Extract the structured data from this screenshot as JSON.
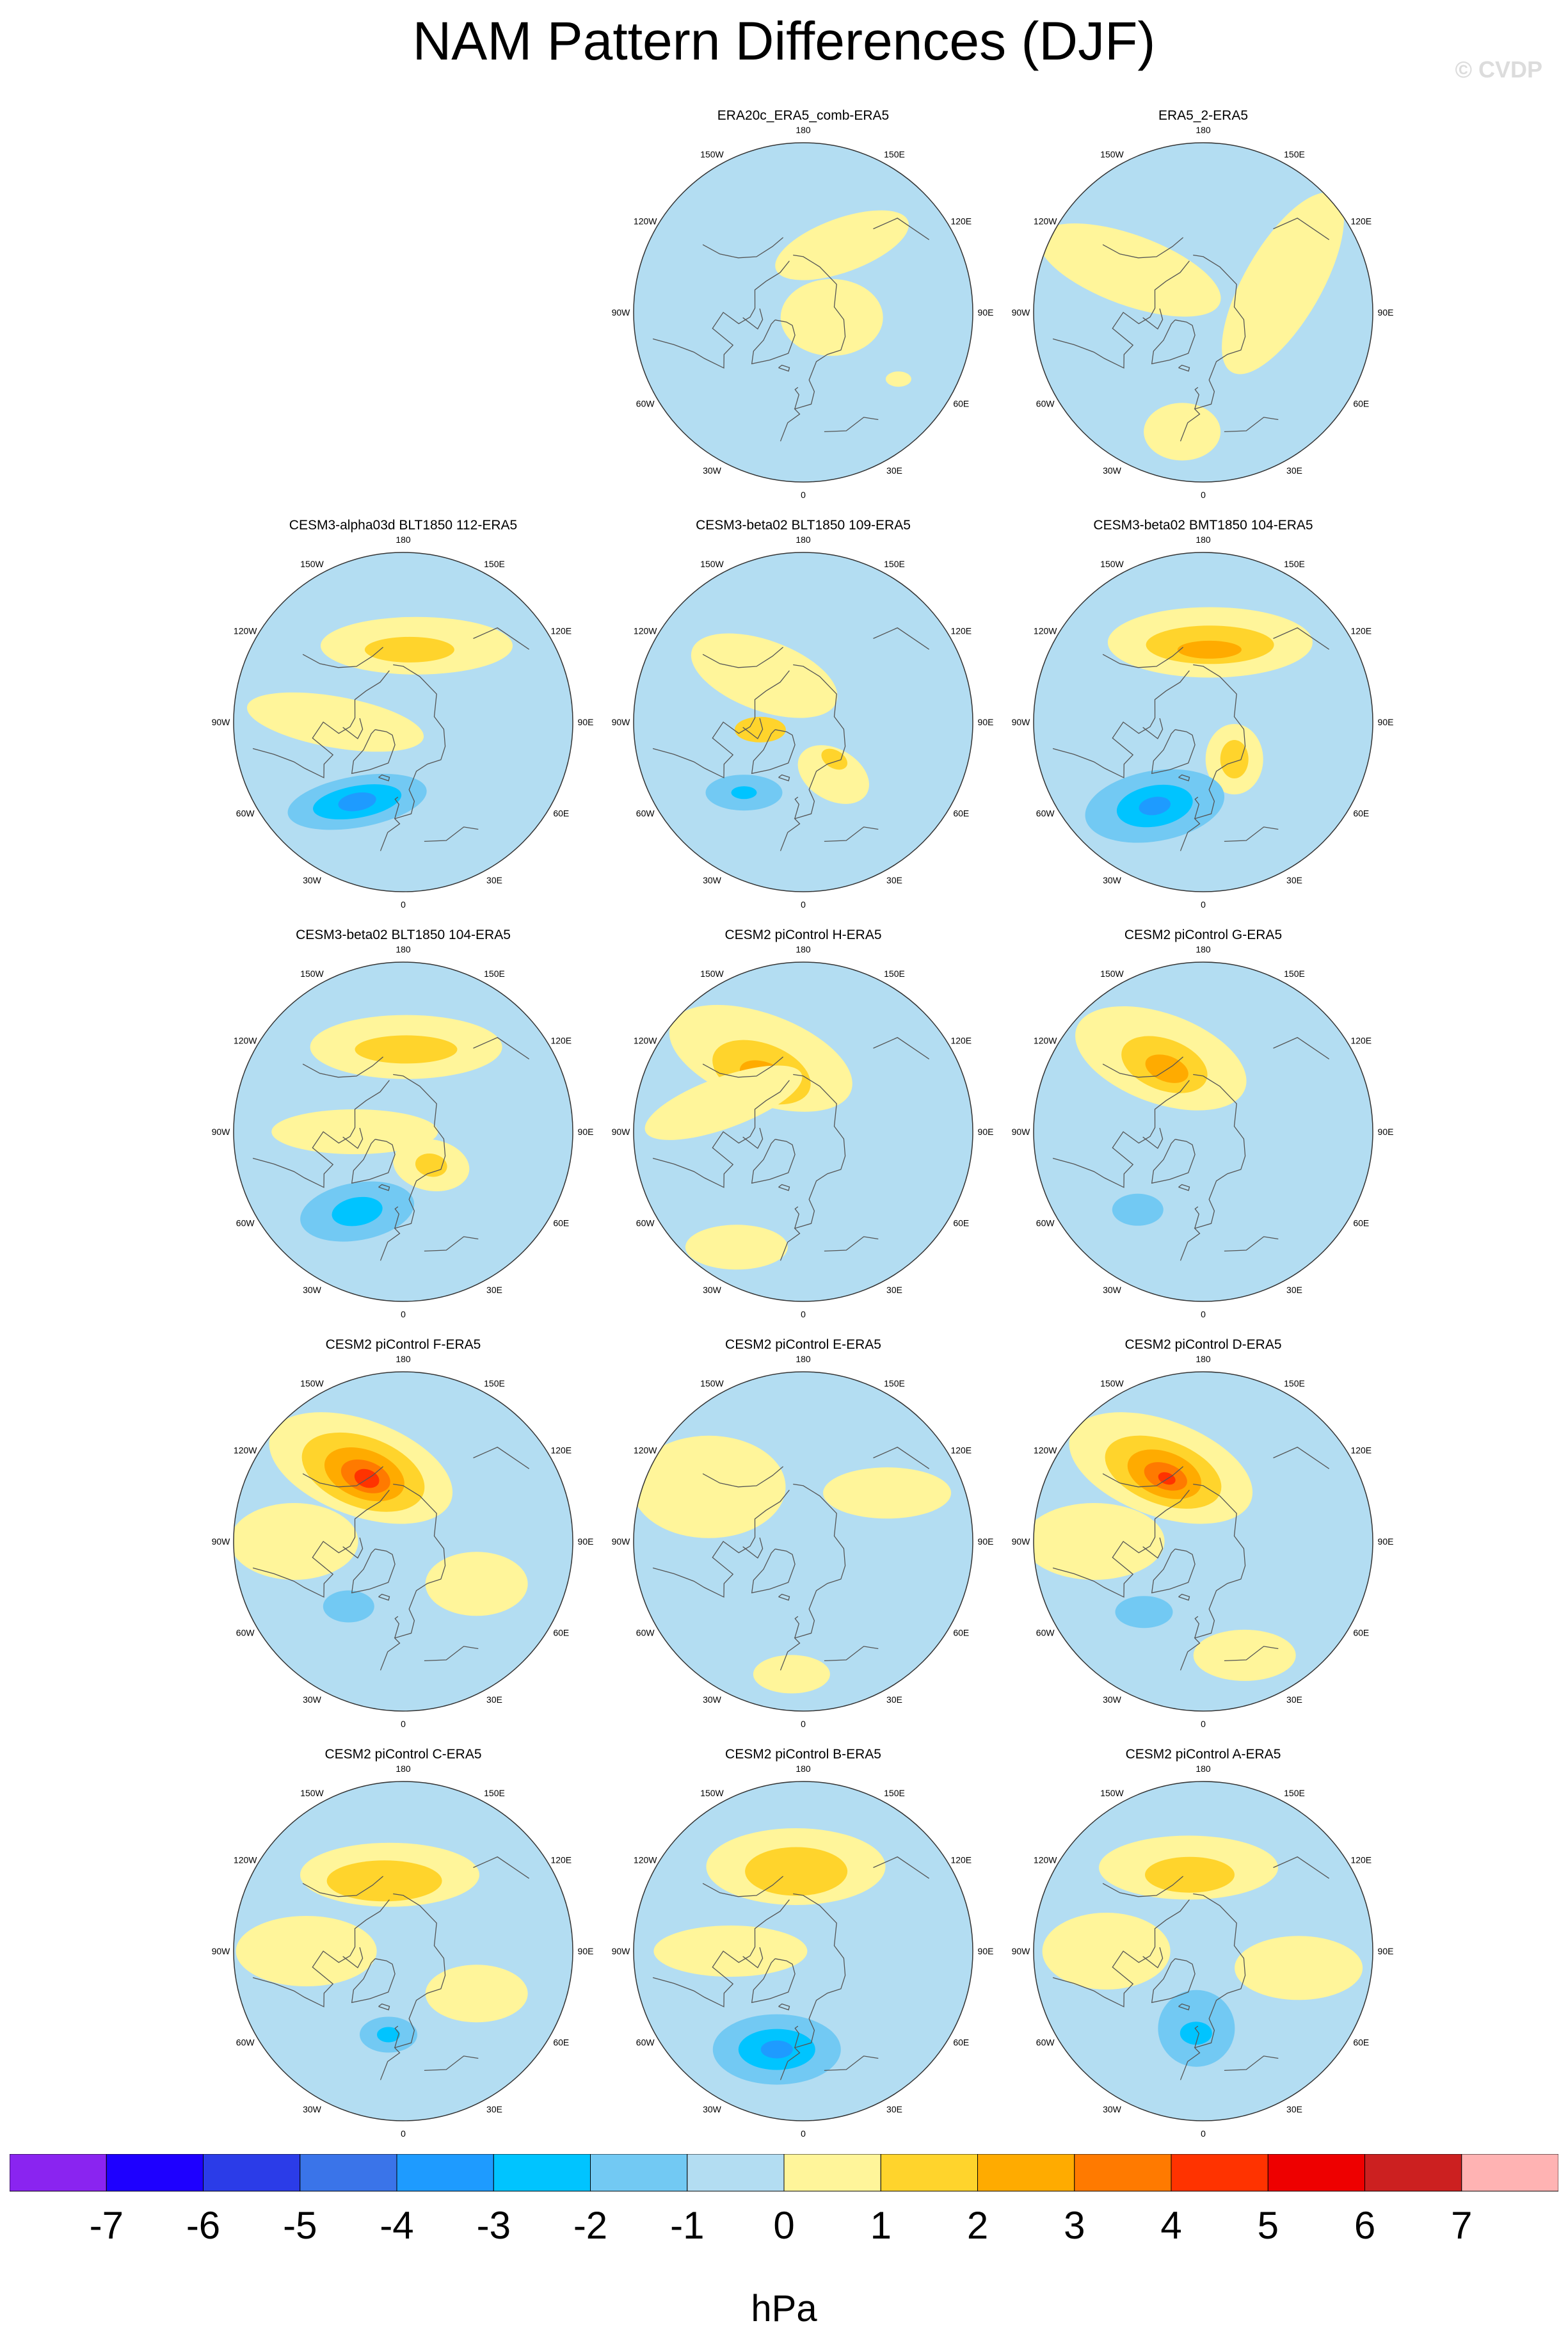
{
  "figure": {
    "title": "NAM Pattern Differences (DJF)",
    "watermark": "© CVDP",
    "units": "hPa"
  },
  "map_labels": [
    "180",
    "150E",
    "120E",
    "90E",
    "60E",
    "30E",
    "0",
    "30W",
    "60W",
    "90W",
    "120W",
    "150W"
  ],
  "palette": {
    "ocean_neutral_negative": "#b3ddf2",
    "land_line": "#555555",
    "circle_line": "#333333"
  },
  "chart_data": {
    "type": "heatmap",
    "title": "NAM Pattern Differences (DJF)",
    "projection": "north polar stereographic",
    "colorbar": {
      "label": "hPa",
      "ticks": [
        "-7",
        "-6",
        "-5",
        "-4",
        "-3",
        "-2",
        "-1",
        "0",
        "1",
        "2",
        "3",
        "4",
        "5",
        "6",
        "7"
      ],
      "colors": [
        "#8a24f0",
        "#1e00ff",
        "#2b3ce8",
        "#3a74e9",
        "#1e9bff",
        "#00c4ff",
        "#72c9f3",
        "#b3ddf2",
        "#fff59a",
        "#ffd42c",
        "#ffab00",
        "#ff7a00",
        "#ff3300",
        "#ee0000",
        "#cc2020",
        "#ffb3b3"
      ]
    },
    "panels": [
      {
        "title": "ERA20c_ERA5_comb-ERA5",
        "row": 0,
        "col": 1,
        "blobs": [
          {
            "lon": 150,
            "lat": 58,
            "rx": 110,
            "ry": 42,
            "rot": -20,
            "level": 8
          },
          {
            "lon": 80,
            "lat": 78,
            "rx": 80,
            "ry": 60,
            "rot": 0,
            "level": 8
          },
          {
            "lon": 55,
            "lat": 42,
            "rx": 20,
            "ry": 12,
            "rot": 0,
            "level": 8
          }
        ]
      },
      {
        "title": "ERA5_2-ERA5",
        "row": 0,
        "col": 2,
        "blobs": [
          {
            "lon": -120,
            "lat": 55,
            "rx": 150,
            "ry": 55,
            "rot": 20,
            "level": 8
          },
          {
            "lon": 110,
            "lat": 55,
            "rx": 160,
            "ry": 60,
            "rot": -60,
            "level": 8
          },
          {
            "lon": -10,
            "lat": 40,
            "rx": 60,
            "ry": 45,
            "rot": 0,
            "level": 8
          }
        ]
      },
      {
        "title": "CESM3-alpha03d BLT1850 112-ERA5",
        "row": 1,
        "col": 0,
        "blobs": [
          {
            "lon": 170,
            "lat": 58,
            "rx": 150,
            "ry": 45,
            "rot": 0,
            "level": 8
          },
          {
            "lon": 175,
            "lat": 60,
            "rx": 70,
            "ry": 20,
            "rot": 0,
            "level": 9
          },
          {
            "lon": -90,
            "lat": 62,
            "rx": 140,
            "ry": 40,
            "rot": 10,
            "level": 8
          },
          {
            "lon": -30,
            "lat": 52,
            "rx": 110,
            "ry": 40,
            "rot": -10,
            "level": 6
          },
          {
            "lon": -30,
            "lat": 52,
            "rx": 70,
            "ry": 25,
            "rot": -10,
            "level": 5
          },
          {
            "lon": -30,
            "lat": 52,
            "rx": 30,
            "ry": 14,
            "rot": -10,
            "level": 4
          }
        ]
      },
      {
        "title": "CESM3-beta02 BLT1850 109-ERA5",
        "row": 1,
        "col": 1,
        "blobs": [
          {
            "lon": -140,
            "lat": 65,
            "rx": 120,
            "ry": 55,
            "rot": 20,
            "level": 8
          },
          {
            "lon": -80,
            "lat": 72,
            "rx": 40,
            "ry": 20,
            "rot": 0,
            "level": 9
          },
          {
            "lon": 30,
            "lat": 65,
            "rx": 60,
            "ry": 40,
            "rot": 30,
            "level": 8
          },
          {
            "lon": 40,
            "lat": 70,
            "rx": 22,
            "ry": 14,
            "rot": 30,
            "level": 9
          },
          {
            "lon": -40,
            "lat": 52,
            "rx": 60,
            "ry": 28,
            "rot": 0,
            "level": 6
          },
          {
            "lon": -40,
            "lat": 52,
            "rx": 20,
            "ry": 10,
            "rot": 0,
            "level": 5
          }
        ]
      },
      {
        "title": "CESM3-beta02 BMT1850 104-ERA5",
        "row": 1,
        "col": 2,
        "blobs": [
          {
            "lon": 175,
            "lat": 57,
            "rx": 160,
            "ry": 55,
            "rot": 0,
            "level": 8
          },
          {
            "lon": 175,
            "lat": 58,
            "rx": 100,
            "ry": 30,
            "rot": 0,
            "level": 9
          },
          {
            "lon": 175,
            "lat": 60,
            "rx": 50,
            "ry": 14,
            "rot": 0,
            "level": 10
          },
          {
            "lon": 40,
            "lat": 70,
            "rx": 45,
            "ry": 55,
            "rot": 0,
            "level": 8
          },
          {
            "lon": 40,
            "lat": 70,
            "rx": 22,
            "ry": 30,
            "rot": 0,
            "level": 9
          },
          {
            "lon": -30,
            "lat": 50,
            "rx": 110,
            "ry": 55,
            "rot": -10,
            "level": 6
          },
          {
            "lon": -30,
            "lat": 50,
            "rx": 60,
            "ry": 32,
            "rot": -10,
            "level": 5
          },
          {
            "lon": -30,
            "lat": 50,
            "rx": 25,
            "ry": 14,
            "rot": -10,
            "level": 4
          }
        ]
      },
      {
        "title": "CESM3-beta02 BLT1850 104-ERA5",
        "row": 2,
        "col": 0,
        "blobs": [
          {
            "lon": 178,
            "lat": 55,
            "rx": 150,
            "ry": 50,
            "rot": 0,
            "level": 8
          },
          {
            "lon": 178,
            "lat": 56,
            "rx": 80,
            "ry": 22,
            "rot": 0,
            "level": 9
          },
          {
            "lon": 40,
            "lat": 72,
            "rx": 60,
            "ry": 40,
            "rot": 10,
            "level": 8
          },
          {
            "lon": 40,
            "lat": 72,
            "rx": 25,
            "ry": 18,
            "rot": 10,
            "level": 9
          },
          {
            "lon": -90,
            "lat": 70,
            "rx": 130,
            "ry": 35,
            "rot": 0,
            "level": 8
          },
          {
            "lon": -30,
            "lat": 52,
            "rx": 90,
            "ry": 45,
            "rot": -10,
            "level": 6
          },
          {
            "lon": -30,
            "lat": 52,
            "rx": 40,
            "ry": 22,
            "rot": -10,
            "level": 5
          }
        ]
      },
      {
        "title": "CESM2 piControl H-ERA5",
        "row": 2,
        "col": 1,
        "blobs": [
          {
            "lon": -150,
            "lat": 55,
            "rx": 150,
            "ry": 70,
            "rot": 20,
            "level": 8
          },
          {
            "lon": -145,
            "lat": 60,
            "rx": 80,
            "ry": 45,
            "rot": 20,
            "level": 9
          },
          {
            "lon": -145,
            "lat": 62,
            "rx": 40,
            "ry": 22,
            "rot": 20,
            "level": 10
          },
          {
            "lon": -110,
            "lat": 55,
            "rx": 130,
            "ry": 40,
            "rot": -20,
            "level": 8
          },
          {
            "lon": -30,
            "lat": 35,
            "rx": 80,
            "ry": 35,
            "rot": 0,
            "level": 8
          }
        ]
      },
      {
        "title": "CESM2 piControl G-ERA5",
        "row": 2,
        "col": 2,
        "blobs": [
          {
            "lon": -150,
            "lat": 55,
            "rx": 140,
            "ry": 70,
            "rot": 20,
            "level": 8
          },
          {
            "lon": -150,
            "lat": 58,
            "rx": 70,
            "ry": 40,
            "rot": 20,
            "level": 9
          },
          {
            "lon": -150,
            "lat": 60,
            "rx": 35,
            "ry": 20,
            "rot": 20,
            "level": 10
          },
          {
            "lon": -40,
            "lat": 48,
            "rx": 40,
            "ry": 25,
            "rot": 0,
            "level": 6
          }
        ]
      },
      {
        "title": "CESM2 piControl F-ERA5",
        "row": 3,
        "col": 0,
        "blobs": [
          {
            "lon": -150,
            "lat": 55,
            "rx": 150,
            "ry": 75,
            "rot": 20,
            "level": 8
          },
          {
            "lon": -150,
            "lat": 57,
            "rx": 100,
            "ry": 55,
            "rot": 20,
            "level": 9
          },
          {
            "lon": -150,
            "lat": 58,
            "rx": 65,
            "ry": 38,
            "rot": 20,
            "level": 10
          },
          {
            "lon": -150,
            "lat": 59,
            "rx": 40,
            "ry": 24,
            "rot": 20,
            "level": 11
          },
          {
            "lon": -150,
            "lat": 60,
            "rx": 20,
            "ry": 14,
            "rot": 20,
            "level": 12
          },
          {
            "lon": -90,
            "lat": 45,
            "rx": 100,
            "ry": 60,
            "rot": 0,
            "level": 8
          },
          {
            "lon": 60,
            "lat": 55,
            "rx": 80,
            "ry": 50,
            "rot": 0,
            "level": 8
          },
          {
            "lon": -40,
            "lat": 55,
            "rx": 40,
            "ry": 25,
            "rot": 0,
            "level": 6
          }
        ]
      },
      {
        "title": "CESM2 piControl E-ERA5",
        "row": 3,
        "col": 1,
        "blobs": [
          {
            "lon": -120,
            "lat": 45,
            "rx": 120,
            "ry": 80,
            "rot": 0,
            "level": 8
          },
          {
            "lon": 120,
            "lat": 50,
            "rx": 100,
            "ry": 40,
            "rot": 0,
            "level": 8
          },
          {
            "lon": -5,
            "lat": 35,
            "rx": 60,
            "ry": 30,
            "rot": 0,
            "level": 8
          }
        ]
      },
      {
        "title": "CESM2 piControl D-ERA5",
        "row": 3,
        "col": 2,
        "blobs": [
          {
            "lon": -150,
            "lat": 55,
            "rx": 150,
            "ry": 75,
            "rot": 20,
            "level": 8
          },
          {
            "lon": -150,
            "lat": 57,
            "rx": 95,
            "ry": 50,
            "rot": 20,
            "level": 9
          },
          {
            "lon": -150,
            "lat": 58,
            "rx": 60,
            "ry": 35,
            "rot": 20,
            "level": 10
          },
          {
            "lon": -150,
            "lat": 59,
            "rx": 35,
            "ry": 20,
            "rot": 20,
            "level": 11
          },
          {
            "lon": -150,
            "lat": 60,
            "rx": 14,
            "ry": 9,
            "rot": 20,
            "level": 12
          },
          {
            "lon": -90,
            "lat": 45,
            "rx": 110,
            "ry": 60,
            "rot": 0,
            "level": 8
          },
          {
            "lon": 20,
            "lat": 40,
            "rx": 80,
            "ry": 40,
            "rot": 0,
            "level": 8
          },
          {
            "lon": -40,
            "lat": 52,
            "rx": 45,
            "ry": 25,
            "rot": 0,
            "level": 6
          }
        ]
      },
      {
        "title": "CESM2 piControl C-ERA5",
        "row": 4,
        "col": 0,
        "blobs": [
          {
            "lon": -170,
            "lat": 58,
            "rx": 140,
            "ry": 50,
            "rot": 0,
            "level": 8
          },
          {
            "lon": -165,
            "lat": 60,
            "rx": 90,
            "ry": 32,
            "rot": 0,
            "level": 9
          },
          {
            "lon": -90,
            "lat": 50,
            "rx": 110,
            "ry": 55,
            "rot": 0,
            "level": 8
          },
          {
            "lon": 60,
            "lat": 55,
            "rx": 80,
            "ry": 45,
            "rot": 0,
            "level": 8
          },
          {
            "lon": -10,
            "lat": 55,
            "rx": 45,
            "ry": 28,
            "rot": 0,
            "level": 6
          },
          {
            "lon": -10,
            "lat": 55,
            "rx": 18,
            "ry": 12,
            "rot": 0,
            "level": 5
          }
        ]
      },
      {
        "title": "CESM2 piControl B-ERA5",
        "row": 4,
        "col": 1,
        "blobs": [
          {
            "lon": -175,
            "lat": 55,
            "rx": 140,
            "ry": 60,
            "rot": 0,
            "level": 8
          },
          {
            "lon": -175,
            "lat": 57,
            "rx": 80,
            "ry": 38,
            "rot": 0,
            "level": 9
          },
          {
            "lon": -90,
            "lat": 60,
            "rx": 120,
            "ry": 40,
            "rot": 0,
            "level": 8
          },
          {
            "lon": -15,
            "lat": 48,
            "rx": 100,
            "ry": 55,
            "rot": 0,
            "level": 6
          },
          {
            "lon": -15,
            "lat": 48,
            "rx": 60,
            "ry": 32,
            "rot": 0,
            "level": 5
          },
          {
            "lon": -15,
            "lat": 48,
            "rx": 25,
            "ry": 14,
            "rot": 0,
            "level": 4
          }
        ]
      },
      {
        "title": "CESM2 piControl A-ERA5",
        "row": 4,
        "col": 2,
        "blobs": [
          {
            "lon": -170,
            "lat": 55,
            "rx": 140,
            "ry": 50,
            "rot": 0,
            "level": 8
          },
          {
            "lon": -170,
            "lat": 58,
            "rx": 70,
            "ry": 28,
            "rot": 0,
            "level": 9
          },
          {
            "lon": -90,
            "lat": 50,
            "rx": 100,
            "ry": 60,
            "rot": 0,
            "level": 8
          },
          {
            "lon": 80,
            "lat": 50,
            "rx": 100,
            "ry": 50,
            "rot": 0,
            "level": 8
          },
          {
            "lon": -5,
            "lat": 58,
            "rx": 60,
            "ry": 60,
            "rot": 0,
            "level": 6
          },
          {
            "lon": -5,
            "lat": 56,
            "rx": 25,
            "ry": 18,
            "rot": 0,
            "level": 5
          }
        ]
      }
    ]
  }
}
